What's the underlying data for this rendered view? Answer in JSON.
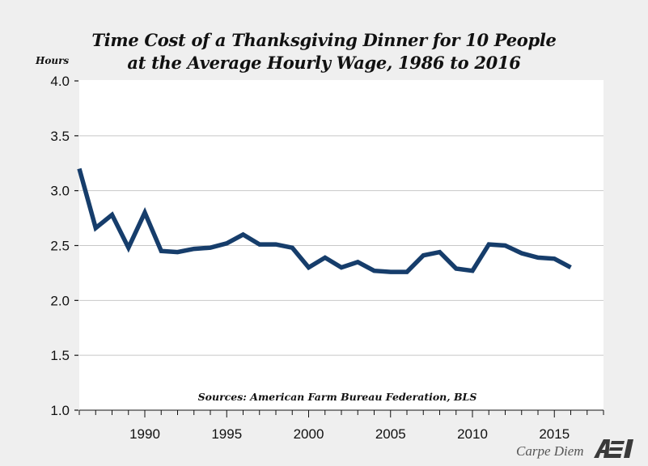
{
  "chart_data": {
    "type": "line",
    "title_line1": "Time Cost of a Thanksgiving Dinner for 10 People",
    "title_line2": "at the Average Hourly Wage, 1986 to 2016",
    "ylabel": "Hours",
    "xlabel": "",
    "xlim": [
      1986,
      2018
    ],
    "ylim": [
      1.0,
      4.0
    ],
    "yticks": [
      "1.0",
      "1.5",
      "2.0",
      "2.5",
      "3.0",
      "3.5",
      "4.0"
    ],
    "xticks": [
      "1990",
      "1995",
      "2000",
      "2005",
      "2010",
      "2015"
    ],
    "grid": "horizontal",
    "annotation": "Sources: American Farm Bureau Federation, BLS",
    "series": [
      {
        "name": "Hours",
        "color": "#163d6b",
        "x": [
          1986,
          1987,
          1988,
          1989,
          1990,
          1991,
          1992,
          1993,
          1994,
          1995,
          1996,
          1997,
          1998,
          1999,
          2000,
          2001,
          2002,
          2003,
          2004,
          2005,
          2006,
          2007,
          2008,
          2009,
          2010,
          2011,
          2012,
          2013,
          2014,
          2015,
          2016
        ],
        "values": [
          3.2,
          2.66,
          2.78,
          2.48,
          2.8,
          2.45,
          2.44,
          2.47,
          2.48,
          2.52,
          2.6,
          2.51,
          2.51,
          2.48,
          2.3,
          2.39,
          2.3,
          2.35,
          2.27,
          2.26,
          2.26,
          2.41,
          2.44,
          2.29,
          2.27,
          2.51,
          2.5,
          2.43,
          2.39,
          2.38,
          2.3
        ]
      }
    ]
  },
  "branding": {
    "text": "Carpe Diem",
    "logo": "AEI"
  }
}
